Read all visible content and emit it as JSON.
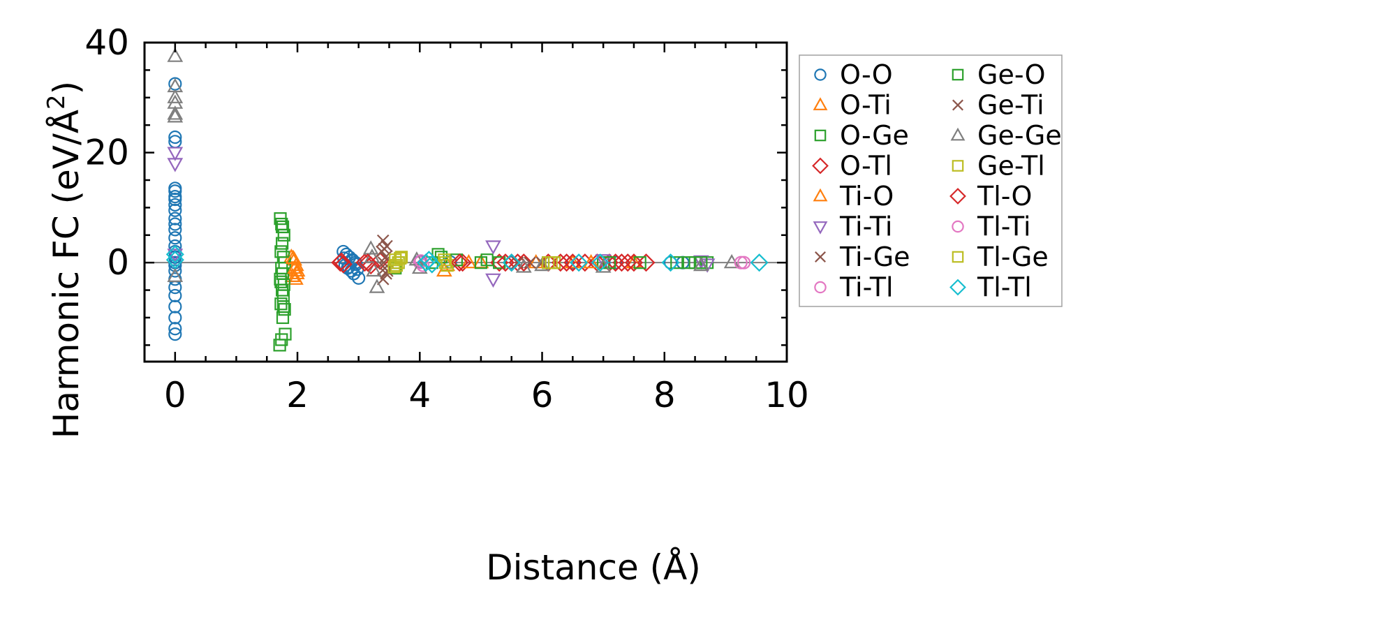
{
  "chart_data": {
    "type": "scatter",
    "title": "",
    "xlabel": "Distance (Å)",
    "ylabel_prefix": "Harmonic FC (eV/Å",
    "ylabel_exponent": "2",
    "ylabel_suffix": ")",
    "xlim": [
      -0.5,
      10.0
    ],
    "ylim": [
      -18,
      40
    ],
    "xticks": [
      0,
      2,
      4,
      6,
      8,
      10
    ],
    "xtick_labels": [
      "0",
      "2",
      "4",
      "6",
      "8",
      "10"
    ],
    "yticks": [
      0,
      20,
      40
    ],
    "ytick_labels": [
      "0",
      "20",
      "40"
    ],
    "grid": false,
    "zero_line": true,
    "legend_position": "outside-right",
    "series": [
      {
        "name": "O-O",
        "marker": "circle",
        "color": "#1f77b4",
        "x": [
          0,
          0,
          0,
          0,
          0,
          0,
          0,
          0,
          0,
          0,
          0,
          0,
          0,
          0,
          0,
          0,
          0,
          0,
          0,
          0,
          0,
          0,
          0,
          0,
          0,
          0,
          0,
          2.75,
          2.8,
          2.85,
          2.9,
          2.95,
          2.78,
          2.82,
          2.88,
          2.92,
          2.98,
          2.76,
          2.84,
          2.9,
          2.96,
          3.0,
          4.0,
          4.5,
          5.5,
          6.5,
          7.2,
          8.1,
          8.3
        ],
        "y": [
          32.5,
          22.8,
          22.0,
          13.5,
          13.0,
          12.0,
          11.5,
          10.5,
          9.5,
          8.0,
          7.0,
          6.0,
          4.5,
          3.0,
          2.0,
          1.0,
          0.0,
          -0.5,
          -1.5,
          -3.0,
          -4.5,
          -6.0,
          -8.0,
          -10.0,
          -12.0,
          -13.0,
          1.0,
          2.0,
          1.5,
          1.0,
          0.5,
          0.0,
          -0.5,
          -1.0,
          -1.5,
          -2.0,
          -1.2,
          0.8,
          -0.8,
          0.3,
          -0.3,
          -2.8,
          0.2,
          0.1,
          0.0,
          0.0,
          0.0,
          0.0,
          0.0
        ]
      },
      {
        "name": "O-Ti",
        "marker": "triangle-up",
        "color": "#ff7f0e",
        "x": [
          1.9,
          1.95,
          1.98,
          2.0,
          1.92,
          1.97,
          4.4,
          5.0,
          6.5,
          7.5
        ],
        "y": [
          1.0,
          0.5,
          -0.5,
          -1.5,
          -2.5,
          -3.0,
          -1.5,
          0.0,
          0.0,
          0.0
        ]
      },
      {
        "name": "O-Ge",
        "marker": "square",
        "color": "#2ca02c",
        "x": [
          1.72,
          1.74,
          1.76,
          1.78,
          1.75,
          1.73,
          1.77,
          1.79,
          1.74,
          1.76,
          1.72,
          1.78,
          1.75,
          1.77,
          1.73,
          1.79,
          1.76,
          1.74,
          1.8,
          1.71,
          3.6,
          4.3,
          5.1,
          6.1,
          7.0,
          8.5,
          8.7
        ],
        "y": [
          8.0,
          7.0,
          6.5,
          5.0,
          3.5,
          2.0,
          1.0,
          0.0,
          -1.0,
          -2.0,
          -3.0,
          -4.0,
          -5.0,
          -6.0,
          -7.5,
          -8.5,
          -10.0,
          -14.0,
          -13.0,
          -15.0,
          -1.0,
          1.5,
          0.5,
          0.0,
          0.0,
          0.0,
          0.0
        ]
      },
      {
        "name": "O-Tl",
        "marker": "diamond",
        "color": "#d62728",
        "x": [
          2.7,
          2.75,
          3.1,
          3.2,
          3.35,
          4.7,
          5.3,
          5.5,
          5.6,
          5.7,
          6.1,
          6.3,
          6.5,
          6.7,
          6.9,
          7.1,
          7.2,
          7.3,
          7.5,
          7.7
        ],
        "y": [
          0.0,
          -0.3,
          0.0,
          -0.5,
          0.3,
          0.0,
          0.0,
          0.0,
          0.0,
          0.0,
          0.0,
          0.0,
          0.0,
          0.0,
          0.0,
          0.0,
          0.0,
          0.0,
          0.0,
          0.0
        ]
      },
      {
        "name": "Ti-O",
        "marker": "triangle-up",
        "color": "#ff7f0e",
        "x": [
          1.93,
          1.96,
          1.99,
          4.45,
          4.8,
          5.9,
          6.8
        ],
        "y": [
          0.8,
          -1.0,
          -2.0,
          -0.5,
          0.0,
          0.0,
          0.0
        ]
      },
      {
        "name": "Ti-Ti",
        "marker": "triangle-down",
        "color": "#9467bd",
        "x": [
          0,
          0,
          0,
          5.2,
          5.2,
          7.0,
          8.6,
          8.7
        ],
        "y": [
          20.0,
          18.0,
          1.5,
          3.0,
          -3.0,
          0.5,
          0.3,
          -0.3
        ]
      },
      {
        "name": "Ti-Ge",
        "marker": "x",
        "color": "#8c564b",
        "x": [
          3.4,
          3.42,
          3.44,
          3.41,
          3.43,
          3.45,
          3.4,
          3.46,
          5.6,
          6.0
        ],
        "y": [
          4.0,
          2.5,
          1.0,
          0.0,
          -1.0,
          -2.0,
          -3.0,
          3.0,
          0.0,
          0.0
        ]
      },
      {
        "name": "Ti-Tl",
        "marker": "circle",
        "color": "#e377c2",
        "x": [
          4.0,
          4.05,
          9.3
        ],
        "y": [
          0.0,
          -0.5,
          0.0
        ]
      },
      {
        "name": "Ge-O",
        "marker": "square",
        "color": "#2ca02c",
        "x": [
          1.75,
          1.77,
          1.73,
          3.65,
          4.2,
          4.35,
          4.6,
          5.0,
          5.3,
          6.2,
          7.1,
          7.6,
          8.2,
          8.4,
          8.6
        ],
        "y": [
          6.5,
          -8.0,
          -3.5,
          0.0,
          0.0,
          1.0,
          0.5,
          0.0,
          0.0,
          0.0,
          0.0,
          0.0,
          0.0,
          0.0,
          0.0
        ]
      },
      {
        "name": "Ge-Ti",
        "marker": "x",
        "color": "#8c564b",
        "x": [
          3.38,
          3.47,
          5.8
        ],
        "y": [
          2.0,
          -1.5,
          0.0
        ]
      },
      {
        "name": "Ge-Ge",
        "marker": "triangle-up",
        "color": "#7f7f7f",
        "x": [
          0,
          0,
          0,
          0,
          0,
          0,
          0,
          3.2,
          3.25,
          3.3,
          3.22,
          3.95,
          4.0,
          5.7,
          6.0,
          7.0,
          8.6,
          9.1
        ],
        "y": [
          37.5,
          32.0,
          30.0,
          29.0,
          27.0,
          26.5,
          -2.5,
          2.5,
          -1.5,
          -4.5,
          1.0,
          0.5,
          -1.0,
          -0.8,
          -0.5,
          -0.8,
          -0.5,
          0.0
        ]
      },
      {
        "name": "Ge-Tl",
        "marker": "square",
        "color": "#bcbd22",
        "x": [
          3.6,
          3.62,
          3.65,
          3.7,
          4.4,
          4.45,
          6.1,
          6.2
        ],
        "y": [
          0.5,
          -0.5,
          0.0,
          1.0,
          0.5,
          -0.5,
          0.0,
          0.0
        ]
      },
      {
        "name": "Tl-O",
        "marker": "diamond",
        "color": "#d62728",
        "x": [
          2.72,
          3.15,
          4.65,
          5.4,
          6.4,
          7.4
        ],
        "y": [
          0.2,
          0.0,
          0.0,
          0.0,
          0.0,
          0.0
        ]
      },
      {
        "name": "Tl-Ti",
        "marker": "circle",
        "color": "#e377c2",
        "x": [
          4.02,
          9.25
        ],
        "y": [
          0.3,
          0.0
        ]
      },
      {
        "name": "Tl-Ge",
        "marker": "square",
        "color": "#bcbd22",
        "x": [
          3.58,
          3.68,
          4.42,
          6.15
        ],
        "y": [
          -0.8,
          0.8,
          0.0,
          0.0
        ]
      },
      {
        "name": "Tl-Tl",
        "marker": "diamond",
        "color": "#17becf",
        "x": [
          0,
          0,
          4.1,
          4.15,
          4.2,
          5.5,
          6.6,
          6.95,
          8.1,
          9.55
        ],
        "y": [
          1.5,
          0.5,
          0.0,
          0.5,
          -0.3,
          0.0,
          0.0,
          0.0,
          0.0,
          0.0
        ]
      }
    ]
  }
}
